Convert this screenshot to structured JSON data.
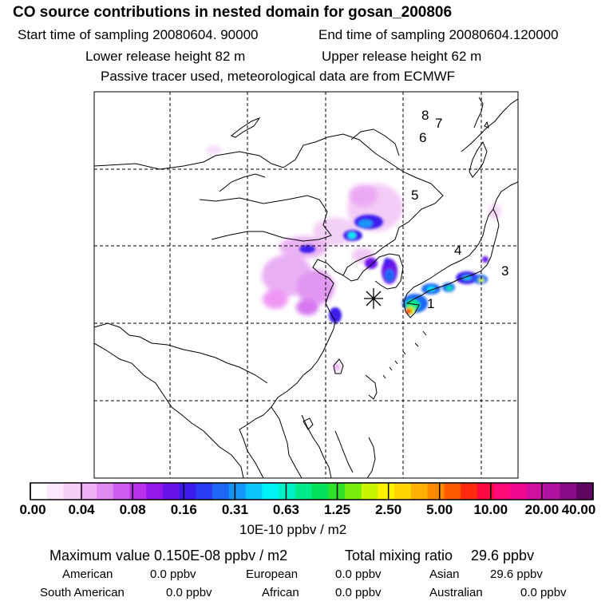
{
  "header": {
    "title": "CO  source contributions in nested domain for gosan_200806",
    "start_time": "Start time of sampling 20080604. 90000",
    "end_time": "End time of sampling 20080604.120000",
    "lower_height": "Lower release height   82 m",
    "upper_height": "Upper release height   62 m",
    "note": "Passive tracer used, meteorological data are from ECMWF"
  },
  "map": {
    "source_labels": [
      "1",
      "3",
      "4",
      "5",
      "6",
      "7",
      "8"
    ],
    "receptor_marker": "gosan"
  },
  "colorbar": {
    "colors": [
      "#ffffff",
      "#fde8fd",
      "#f8cff8",
      "#f0b0f5",
      "#e08af2",
      "#cf5ef0",
      "#b832ee",
      "#9418ec",
      "#6a12ea",
      "#3c1aec",
      "#2a3cf2",
      "#1f68f6",
      "#1296fa",
      "#0ac4fc",
      "#00f2f6",
      "#00f0c8",
      "#00ec8c",
      "#00e05a",
      "#30e028",
      "#78ec0a",
      "#c8f400",
      "#fff200",
      "#ffd400",
      "#ffb000",
      "#ff8a00",
      "#ff5a00",
      "#ff2a10",
      "#ff0a40",
      "#ff0a78",
      "#f00890",
      "#d010a0",
      "#b012a0",
      "#8a0c88",
      "#5e0660"
    ],
    "tick_labels": [
      "0.00",
      "0.04",
      "0.08",
      "0.16",
      "0.31",
      "0.63",
      "1.25",
      "2.50",
      "5.00",
      "10.00",
      "20.00",
      "40.00"
    ],
    "unit": "10E-10 ppbv / m2"
  },
  "summary": {
    "max_value": "Maximum value  0.150E-08 ppbv / m2",
    "total_label": "Total mixing ratio",
    "total_value": "29.6 ppbv",
    "regions": [
      {
        "name": "American",
        "value": "0.0 ppbv"
      },
      {
        "name": "European",
        "value": "0.0 ppbv"
      },
      {
        "name": "Asian",
        "value": "29.6 ppbv"
      },
      {
        "name": "South American",
        "value": "0.0 ppbv"
      },
      {
        "name": "African",
        "value": "0.0 ppbv"
      },
      {
        "name": "Australian",
        "value": "0.0 ppbv"
      }
    ]
  }
}
